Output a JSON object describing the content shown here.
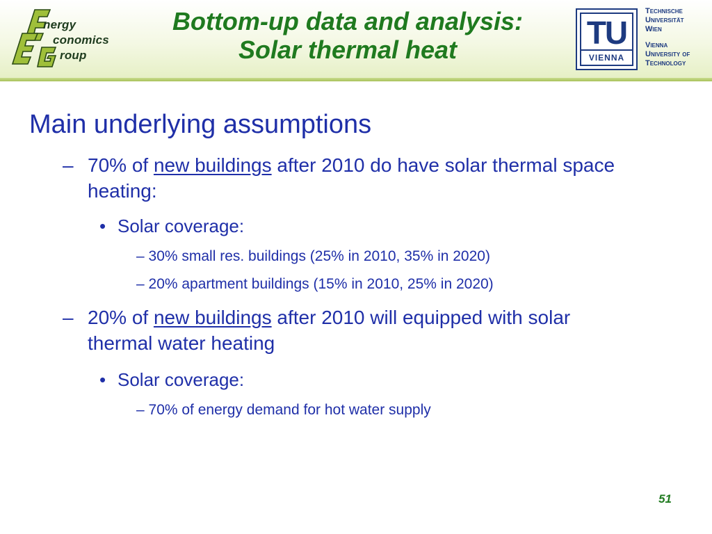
{
  "header": {
    "title_line1": "Bottom-up data and analysis:",
    "title_line2": "Solar thermal heat",
    "eeg_logo": {
      "line1": "nergy",
      "line2": "conomics",
      "line3": "roup",
      "big_letters": [
        "E",
        "E",
        "G"
      ]
    },
    "tu_logo": {
      "letters": "TU",
      "band": "VIENNA",
      "text_lines_a": [
        "Technische",
        "Universität",
        "Wien"
      ],
      "text_lines_b": [
        "Vienna",
        "University of",
        "Technology"
      ]
    }
  },
  "body": {
    "heading": "Main underlying assumptions",
    "items": [
      {
        "dash": "–",
        "prefix": "70% of ",
        "underlined": "new buildings",
        "suffix": " after 2010 do have solar thermal space heating:",
        "sub_bullet": "Solar coverage:",
        "sub_items": [
          "– 30% small res. buildings (25% in 2010, 35% in 2020)",
          "– 20% apartment buildings (15% in 2010, 25% in 2020)"
        ]
      },
      {
        "dash": "–",
        "prefix": "20% of ",
        "underlined": "new buildings",
        "suffix": " after 2010 will equipped with solar thermal water heating",
        "sub_bullet": "Solar coverage:",
        "sub_items": [
          "– 70% of energy demand for hot water supply"
        ]
      }
    ],
    "bullet_char": "•"
  },
  "footer": {
    "page_number": "51"
  },
  "colors": {
    "title_green": "#1f7a1f",
    "body_blue": "#1f2fa8",
    "tu_blue": "#1d3a80",
    "header_band": "#e6f0c6"
  }
}
